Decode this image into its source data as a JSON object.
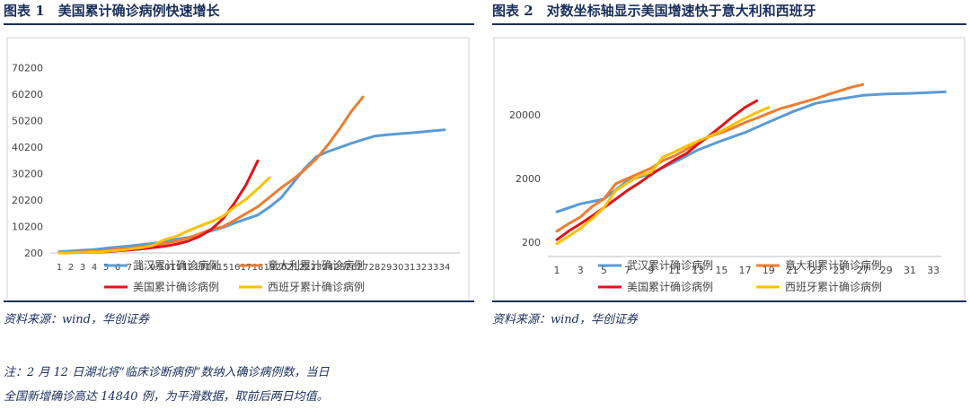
{
  "colors": {
    "wuhan": "#5b9bd5",
    "italy": "#ed7d31",
    "usa": "#e3131b",
    "spain": "#ffc000",
    "brand_navy": "#1a2f5c"
  },
  "panel1": {
    "title": "图表 1　美国累计确诊病例快速增长",
    "source": "资料来源：wind，华创证券"
  },
  "panel2": {
    "title": "图表 2　对数坐标轴显示美国增速快于意大利和西班牙",
    "source": "资料来源：wind，华创证券"
  },
  "note": {
    "line1": "注：2 月 12 日湖北将“临床诊断病例”数纳入确诊病例数，当日",
    "line2": "全国新增确诊高达 14840 例，为平滑数据，取前后两日均值。"
  },
  "chart_data": [
    {
      "type": "line",
      "scale": "linear",
      "ylim": [
        200,
        70000
      ],
      "y_ticks": [
        200,
        10200,
        20200,
        30200,
        40200,
        50200,
        60200,
        70200
      ],
      "x_ticks": [
        "1",
        "2",
        "3",
        "4",
        "5",
        "6",
        "7",
        "8",
        "9",
        "10",
        "11",
        "12",
        "13",
        "14",
        "15",
        "16",
        "17",
        "18",
        "19",
        "20",
        "21",
        "22",
        "23",
        "24",
        "25",
        "26",
        "27",
        "28",
        "29",
        "30",
        "31",
        "32",
        "33",
        "34"
      ],
      "grid": false,
      "legend_position": "bottom",
      "series": [
        {
          "name": "武汉累计确诊病例",
          "color_key": "wuhan",
          "x": [
            1,
            2,
            3,
            4,
            5,
            6,
            7,
            8,
            9,
            10,
            11,
            12,
            13,
            14,
            15,
            16,
            17,
            18,
            19,
            20,
            21,
            22,
            23,
            24,
            25,
            26,
            27,
            28,
            29,
            30,
            31,
            32,
            33,
            34
          ],
          "values": [
            700,
            900,
            1200,
            1500,
            2000,
            2400,
            2800,
            3300,
            3800,
            4500,
            5400,
            6000,
            7000,
            8500,
            9800,
            11500,
            13000,
            14500,
            17500,
            21000,
            26500,
            32000,
            36500,
            38500,
            40000,
            41600,
            43000,
            44300,
            44800,
            45200,
            45500,
            45900,
            46300,
            46700
          ]
        },
        {
          "name": "意大利累计确诊病例",
          "color_key": "italy",
          "x": [
            1,
            2,
            3,
            4,
            5,
            6,
            7,
            8,
            9,
            10,
            11,
            12,
            13,
            14,
            15,
            16,
            17,
            18,
            19,
            20,
            21,
            22,
            23,
            24,
            25,
            26,
            27
          ],
          "values": [
            300,
            400,
            650,
            900,
            1100,
            1700,
            2000,
            2500,
            3000,
            3800,
            4600,
            5800,
            7400,
            9100,
            10100,
            12500,
            15100,
            17700,
            21200,
            24800,
            27900,
            31500,
            35700,
            41000,
            47000,
            53600,
            59100
          ]
        },
        {
          "name": "美国累计确诊病例",
          "color_key": "usa",
          "x": [
            1,
            2,
            3,
            4,
            5,
            6,
            7,
            8,
            9,
            10,
            11,
            12,
            13,
            14,
            15,
            16,
            17,
            18
          ],
          "values": [
            200,
            300,
            400,
            500,
            600,
            1000,
            1300,
            1700,
            2200,
            2700,
            3500,
            4600,
            6400,
            9000,
            13000,
            19000,
            26000,
            35000
          ]
        },
        {
          "name": "西班牙累计确诊病例",
          "color_key": "spain",
          "x": [
            1,
            2,
            3,
            4,
            5,
            6,
            7,
            8,
            9,
            10,
            11,
            12,
            13,
            14,
            15,
            16,
            17,
            18,
            19
          ],
          "values": [
            200,
            300,
            400,
            600,
            800,
            1100,
            1700,
            2200,
            3000,
            5200,
            6400,
            8500,
            10300,
            12000,
            14000,
            17500,
            20500,
            24500,
            28600
          ]
        }
      ]
    },
    {
      "type": "line",
      "scale": "log",
      "ylim": [
        120,
        100000
      ],
      "y_ticks": [
        200,
        2000,
        20000
      ],
      "x_ticks": [
        "1",
        "3",
        "5",
        "7",
        "9",
        "11",
        "13",
        "15",
        "17",
        "19",
        "21",
        "23",
        "25",
        "27",
        "29",
        "31",
        "33"
      ],
      "grid": false,
      "legend_position": "bottom",
      "series": [
        {
          "name": "武汉累计确诊病例",
          "color_key": "wuhan",
          "x": [
            1,
            3,
            5,
            7,
            9,
            11,
            13,
            15,
            17,
            19,
            21,
            23,
            25,
            27,
            29,
            31,
            33,
            34
          ],
          "values": [
            600,
            800,
            950,
            1850,
            2400,
            3600,
            5600,
            7800,
            10500,
            15300,
            22000,
            30000,
            35000,
            40000,
            42000,
            43000,
            44500,
            45500
          ]
        },
        {
          "name": "意大利累计确诊病例",
          "color_key": "italy",
          "x": [
            1,
            2,
            3,
            4,
            5,
            6,
            7,
            8,
            9,
            10,
            11,
            12,
            13,
            14,
            15,
            16,
            17,
            18,
            19,
            20,
            21,
            22,
            23,
            24,
            25,
            26,
            27
          ],
          "values": [
            300,
            390,
            500,
            730,
            960,
            1650,
            2000,
            2400,
            2900,
            3800,
            4500,
            5700,
            7400,
            9100,
            10500,
            12400,
            15100,
            17700,
            21000,
            24800,
            27900,
            31500,
            35700,
            41000,
            47000,
            53600,
            59100
          ]
        },
        {
          "name": "美国累计确诊病例",
          "color_key": "usa",
          "x": [
            1,
            2,
            3,
            4,
            5,
            6,
            7,
            8,
            9,
            10,
            11,
            12,
            13,
            14,
            15,
            16,
            17,
            18
          ],
          "values": [
            220,
            300,
            390,
            520,
            700,
            950,
            1300,
            1700,
            2300,
            3000,
            3900,
            4900,
            6900,
            9500,
            13300,
            18900,
            26000,
            33000
          ]
        },
        {
          "name": "西班牙累计确诊病例",
          "color_key": "spain",
          "x": [
            1,
            2,
            3,
            4,
            5,
            6,
            7,
            8,
            9,
            10,
            11,
            12,
            13,
            14,
            15,
            16,
            17,
            18,
            19
          ],
          "values": [
            190,
            250,
            330,
            470,
            700,
            1300,
            1700,
            2200,
            2500,
            4300,
            5200,
            6400,
            7700,
            9200,
            11100,
            14000,
            17600,
            21600,
            26000
          ]
        }
      ]
    }
  ]
}
